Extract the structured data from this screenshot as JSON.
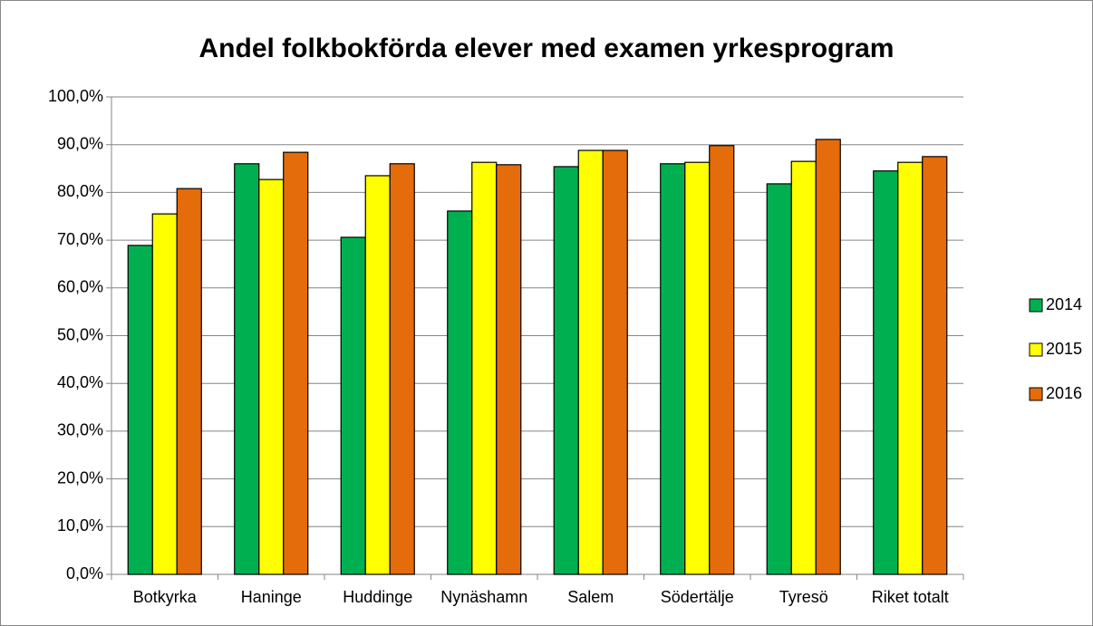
{
  "chart_data": {
    "type": "bar",
    "title": "Andel folkbokförda elever med examen yrkesprogram",
    "categories": [
      "Botkyrka",
      "Haninge",
      "Huddinge",
      "Nynäshamn",
      "Salem",
      "Södertälje",
      "Tyresö",
      "Riket totalt"
    ],
    "series": [
      {
        "name": "2014",
        "color": "#00b050",
        "values": [
          68.9,
          86.0,
          70.6,
          76.1,
          85.4,
          86.0,
          81.8,
          84.5
        ]
      },
      {
        "name": "2015",
        "color": "#ffff00",
        "values": [
          75.5,
          82.7,
          83.5,
          86.3,
          88.8,
          86.3,
          86.5,
          86.3
        ]
      },
      {
        "name": "2016",
        "color": "#e46c0a",
        "values": [
          80.8,
          88.4,
          86.0,
          85.8,
          88.8,
          89.8,
          91.1,
          87.5
        ]
      }
    ],
    "ylim": [
      0,
      100
    ],
    "yticks": [
      {
        "value": 0,
        "label": "0,0%"
      },
      {
        "value": 10,
        "label": "10,0%"
      },
      {
        "value": 20,
        "label": "20,0%"
      },
      {
        "value": 30,
        "label": "30,0%"
      },
      {
        "value": 40,
        "label": "40,0%"
      },
      {
        "value": 50,
        "label": "50,0%"
      },
      {
        "value": 60,
        "label": "60,0%"
      },
      {
        "value": 70,
        "label": "70,0%"
      },
      {
        "value": 80,
        "label": "80,0%"
      },
      {
        "value": 90,
        "label": "90,0%"
      },
      {
        "value": 100,
        "label": "100,0%"
      }
    ],
    "grid": true,
    "legend": "right"
  }
}
